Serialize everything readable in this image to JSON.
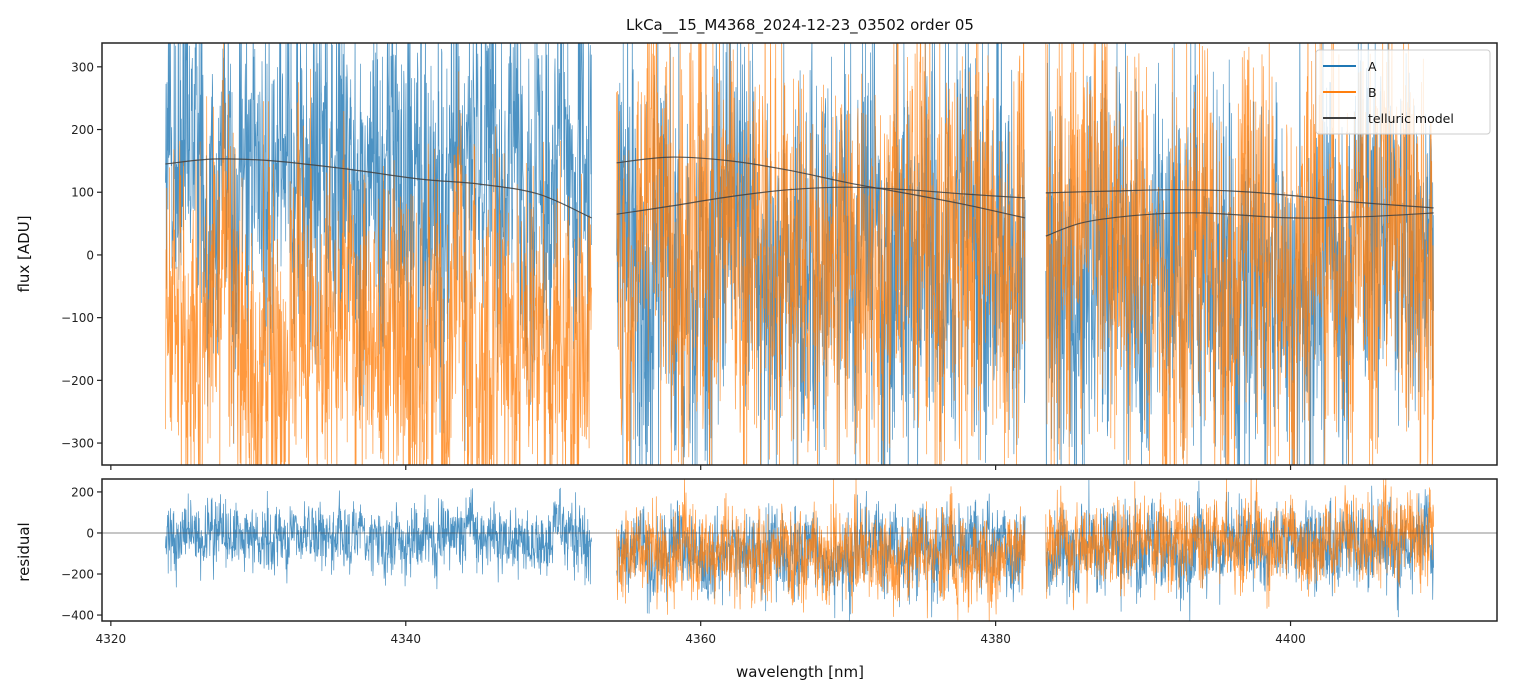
{
  "chart_data": {
    "type": "line",
    "title": "LkCa__15_M4368_2024-12-23_03502  order 05",
    "xlabel": "wavelength [nm]",
    "xlim": [
      4319.4,
      4414.0
    ],
    "x_ticks": [
      4320,
      4340,
      4360,
      4380,
      4400
    ],
    "x_tick_labels": [
      "4320",
      "4340",
      "4360",
      "4380",
      "4400"
    ],
    "panels": [
      {
        "name": "flux",
        "ylabel": "flux [ADU]",
        "ylim": [
          -335,
          338
        ],
        "y_ticks": [
          300,
          200,
          100,
          0,
          -100,
          -200,
          -300
        ],
        "y_tick_labels": [
          "300",
          "200",
          "100",
          "0",
          "−100",
          "−200",
          "−300"
        ],
        "legend": {
          "placement": "top-right",
          "entries": [
            {
              "label": "A",
              "color": "#1f77b4"
            },
            {
              "label": "B",
              "color": "#ff7f0e"
            },
            {
              "label": "telluric model",
              "color": "#404040"
            }
          ]
        }
      },
      {
        "name": "residual",
        "ylabel": "residual",
        "ylim": [
          -429,
          263
        ],
        "y_ticks": [
          200,
          0,
          -200,
          -400
        ],
        "y_tick_labels": [
          "200",
          "0",
          "−200",
          "−400"
        ],
        "reference_line": 0
      }
    ],
    "chunks": [
      {
        "x_start": 4323.7,
        "x_end": 4352.6
      },
      {
        "x_start": 4354.3,
        "x_end": 4382.0
      },
      {
        "x_start": 4383.4,
        "x_end": 4409.7
      }
    ],
    "series": [
      {
        "name": "A",
        "color": "#1f77b4",
        "flux_level_per_chunk": [
          130,
          20,
          -30
        ],
        "flux_noise_per_chunk": [
          150,
          170,
          160
        ],
        "residual_level_per_chunk": [
          -20,
          -90,
          -70
        ],
        "residual_noise_per_chunk": [
          85,
          110,
          110
        ]
      },
      {
        "name": "B",
        "color": "#ff7f0e",
        "flux_level_per_chunk": [
          -120,
          -20,
          0
        ],
        "flux_noise_per_chunk": [
          150,
          180,
          170
        ],
        "residual_level_per_chunk": [
          null,
          -110,
          -50
        ],
        "residual_noise_per_chunk": [
          null,
          120,
          110
        ]
      }
    ],
    "telluric_model": [
      {
        "chunk": 0,
        "x": [
          4323.7,
          4327,
          4331,
          4336,
          4341,
          4345,
          4349,
          4352.6
        ],
        "y": [
          145,
          153,
          150,
          137,
          121,
          113,
          97,
          59
        ]
      },
      {
        "chunk": 1,
        "x": [
          4354.3,
          4358,
          4362,
          4366,
          4370,
          4374,
          4378,
          4382.0
        ],
        "y": [
          147,
          156,
          150,
          135,
          115,
          98,
          80,
          59
        ]
      },
      {
        "chunk": 1,
        "x": [
          4354.3,
          4358,
          4362,
          4366,
          4370,
          4374,
          4378,
          4382.0
        ],
        "y": [
          65,
          78,
          93,
          104,
          108,
          104,
          97,
          91
        ]
      },
      {
        "chunk": 2,
        "x": [
          4383.4,
          4388,
          4392,
          4396,
          4400,
          4404,
          4409.7
        ],
        "y": [
          99,
          102,
          104,
          102,
          95,
          85,
          75
        ]
      },
      {
        "chunk": 2,
        "x": [
          4383.4,
          4386,
          4390,
          4394,
          4400,
          4405,
          4409.7
        ],
        "y": [
          30,
          52,
          64,
          67,
          59,
          61,
          67
        ]
      }
    ]
  }
}
